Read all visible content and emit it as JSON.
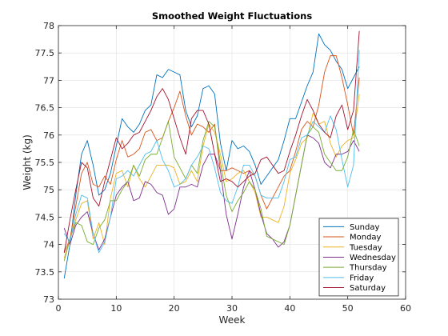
{
  "chart_data": {
    "type": "line",
    "title": "Smoothed Weight Fluctuations",
    "xlabel": "Week",
    "ylabel": "Weight (kg)",
    "xlim": [
      0,
      60
    ],
    "ylim": [
      73,
      78
    ],
    "xticks": [
      0,
      10,
      20,
      30,
      40,
      50,
      60
    ],
    "yticks": [
      73,
      73.5,
      74,
      74.5,
      75,
      75.5,
      76,
      76.5,
      77,
      77.5,
      78
    ],
    "grid": true,
    "legend_position": "bottom-right",
    "x": [
      1,
      2,
      3,
      4,
      5,
      6,
      7,
      8,
      9,
      10,
      11,
      12,
      13,
      14,
      15,
      16,
      17,
      18,
      19,
      20,
      21,
      22,
      23,
      24,
      25,
      26,
      27,
      28,
      29,
      30,
      31,
      32,
      33,
      34,
      35,
      36,
      37,
      38,
      39,
      40,
      41,
      42,
      43,
      44,
      45,
      46,
      47,
      48,
      49,
      50,
      51,
      52
    ],
    "series": [
      {
        "name": "Sunday",
        "color": "#0072BD",
        "values": [
          73.38,
          74.0,
          74.9,
          75.65,
          75.9,
          75.45,
          74.9,
          75.0,
          75.3,
          75.8,
          76.3,
          76.15,
          76.05,
          76.2,
          76.45,
          76.55,
          77.1,
          77.05,
          77.2,
          77.15,
          77.1,
          76.45,
          76.15,
          76.35,
          76.85,
          76.9,
          76.75,
          75.85,
          75.35,
          75.9,
          75.75,
          75.8,
          75.7,
          75.45,
          75.1,
          75.25,
          75.4,
          75.55,
          75.9,
          76.3,
          76.3,
          76.6,
          76.9,
          77.15,
          77.85,
          77.65,
          77.55,
          77.35,
          77.2,
          76.85,
          77.05,
          77.25
        ]
      },
      {
        "name": "Monday",
        "color": "#D95319",
        "values": [
          73.85,
          74.1,
          74.7,
          75.3,
          75.5,
          75.1,
          75.05,
          75.25,
          75.1,
          75.55,
          75.9,
          75.6,
          75.65,
          75.75,
          76.05,
          76.1,
          75.9,
          75.95,
          76.25,
          76.5,
          76.8,
          76.35,
          76.0,
          76.2,
          76.15,
          76.05,
          76.2,
          75.35,
          75.35,
          75.4,
          75.35,
          75.3,
          75.35,
          75.25,
          74.9,
          74.65,
          74.85,
          75.05,
          75.25,
          75.35,
          75.7,
          76.1,
          76.25,
          76.15,
          76.55,
          77.15,
          77.45,
          77.45,
          77.05,
          76.55,
          76.0,
          77.05
        ]
      },
      {
        "name": "Tuesday",
        "color": "#EDB120",
        "values": [
          73.75,
          74.1,
          74.45,
          74.75,
          74.8,
          74.1,
          74.4,
          74.0,
          74.85,
          75.3,
          75.35,
          75.05,
          75.45,
          75.2,
          75.05,
          75.25,
          75.45,
          75.45,
          75.45,
          75.4,
          75.1,
          75.15,
          75.35,
          75.15,
          75.8,
          76.2,
          76.05,
          75.65,
          75.15,
          75.2,
          75.3,
          75.35,
          75.15,
          74.95,
          74.5,
          74.5,
          74.45,
          74.4,
          74.7,
          75.3,
          75.55,
          75.85,
          75.95,
          76.4,
          76.2,
          76.25,
          75.85,
          75.6,
          75.8,
          75.9,
          75.95,
          76.75
        ]
      },
      {
        "name": "Wednesday",
        "color": "#7E2F8E",
        "values": [
          74.3,
          74.0,
          74.35,
          74.5,
          74.6,
          74.2,
          73.9,
          74.1,
          74.5,
          74.9,
          75.05,
          75.15,
          74.8,
          74.85,
          75.15,
          75.1,
          74.95,
          74.9,
          74.55,
          74.65,
          75.05,
          75.05,
          75.1,
          75.05,
          75.45,
          75.65,
          75.65,
          75.35,
          74.55,
          74.1,
          74.55,
          75.05,
          75.35,
          75.0,
          74.55,
          74.2,
          74.1,
          73.95,
          74.05,
          74.35,
          74.9,
          75.45,
          76.0,
          75.95,
          75.85,
          75.5,
          75.4,
          75.65,
          75.65,
          75.7,
          75.9,
          75.7
        ]
      },
      {
        "name": "Thursday",
        "color": "#77AC30",
        "values": [
          73.7,
          74.1,
          74.4,
          74.35,
          74.05,
          74.0,
          74.3,
          74.45,
          74.8,
          74.8,
          75.0,
          75.15,
          75.45,
          75.25,
          75.55,
          75.65,
          75.65,
          75.95,
          76.25,
          75.6,
          75.4,
          75.2,
          75.45,
          75.3,
          75.9,
          76.25,
          76.15,
          75.5,
          74.9,
          74.6,
          74.8,
          74.95,
          75.15,
          75.0,
          74.65,
          74.15,
          74.1,
          74.05,
          74.0,
          74.35,
          74.9,
          75.45,
          76.0,
          76.15,
          76.05,
          75.65,
          75.5,
          75.35,
          75.35,
          75.6,
          76.1,
          75.8
        ]
      },
      {
        "name": "Friday",
        "color": "#4DBEEE",
        "values": [
          74.2,
          74.05,
          74.55,
          74.9,
          74.85,
          74.2,
          73.85,
          74.05,
          74.5,
          75.2,
          75.25,
          75.35,
          75.25,
          75.45,
          75.65,
          75.7,
          75.9,
          75.55,
          75.35,
          75.05,
          75.1,
          75.2,
          75.45,
          75.6,
          75.8,
          75.75,
          75.4,
          74.95,
          74.8,
          74.75,
          75.05,
          75.45,
          75.45,
          75.25,
          74.9,
          74.85,
          74.85,
          74.85,
          75.15,
          75.55,
          75.6,
          75.95,
          76.0,
          76.25,
          76.15,
          76.05,
          76.35,
          76.1,
          75.55,
          75.05,
          75.45,
          77.55
        ]
      },
      {
        "name": "Saturday",
        "color": "#A2142F",
        "values": [
          73.85,
          74.45,
          75.0,
          75.5,
          75.4,
          74.85,
          74.7,
          75.15,
          75.55,
          75.95,
          75.75,
          75.85,
          76.0,
          76.05,
          76.25,
          76.45,
          76.7,
          76.85,
          76.65,
          76.3,
          75.95,
          75.65,
          76.3,
          76.45,
          76.45,
          76.2,
          75.65,
          75.15,
          75.2,
          75.15,
          75.05,
          75.15,
          75.25,
          75.3,
          75.55,
          75.6,
          75.45,
          75.3,
          75.35,
          75.7,
          76.0,
          76.35,
          76.65,
          76.45,
          76.2,
          76.05,
          75.95,
          76.35,
          76.55,
          76.1,
          76.45,
          77.9
        ]
      }
    ]
  }
}
